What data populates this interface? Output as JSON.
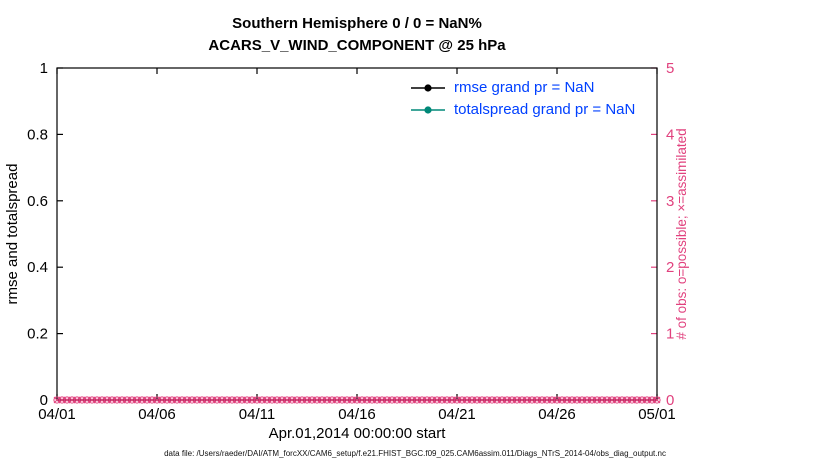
{
  "colors": {
    "background": "#ffffff",
    "axis_black": "#000000",
    "obs_pink": "#e1417e",
    "legend_text_blue": "#0040ff",
    "rmse_black": "#000000",
    "totalspread_teal": "#008878"
  },
  "titles": {
    "line1": "Southern Hemisphere 0 / 0 = NaN%",
    "line2": "ACARS_V_WIND_COMPONENT @ 25 hPa"
  },
  "legend": {
    "items": [
      {
        "label": "rmse grand pr = NaN",
        "series": "rmse"
      },
      {
        "label": "totalspread grand pr = NaN",
        "series": "totalspread"
      }
    ]
  },
  "footer": "data file: /Users/raeder/DAI/ATM_forcXX/CAM6_setup/f.e21.FHIST_BGC.f09_025.CAM6assim.011/Diags_NTrS_2014-04/obs_diag_output.nc",
  "chart_data": {
    "type": "line",
    "title": "Southern Hemisphere 0 / 0 = NaN% | ACARS_V_WIND_COMPONENT @ 25 hPa",
    "xlabel": "Apr.01,2014 00:00:00 start",
    "x_tick_labels": [
      "04/01",
      "04/06",
      "04/11",
      "04/16",
      "04/21",
      "04/26",
      "05/01"
    ],
    "left_axis": {
      "label": "rmse and totalspread",
      "ylim": [
        0,
        1
      ],
      "ticks": [
        0,
        0.2,
        0.4,
        0.6,
        0.8,
        1
      ]
    },
    "right_axis": {
      "label": "# of obs: o=possible; ×=assimilated",
      "ylim": [
        0,
        5
      ],
      "ticks": [
        0,
        1,
        2,
        3,
        4,
        5
      ]
    },
    "grid": false,
    "legend_position": "top-right-inside",
    "series": [
      {
        "name": "rmse",
        "axis": "left",
        "grand_pr": "NaN",
        "values": []
      },
      {
        "name": "totalspread",
        "axis": "left",
        "grand_pr": "NaN",
        "values": []
      },
      {
        "name": "possible obs (o)",
        "axis": "right",
        "marker": "o",
        "constant_value": 0,
        "n_points": 121,
        "x_span_days": [
          0,
          30
        ]
      },
      {
        "name": "assimilated obs (x)",
        "axis": "right",
        "marker": "x",
        "constant_value": 0,
        "n_points": 121,
        "x_span_days": [
          0,
          30
        ]
      }
    ]
  }
}
